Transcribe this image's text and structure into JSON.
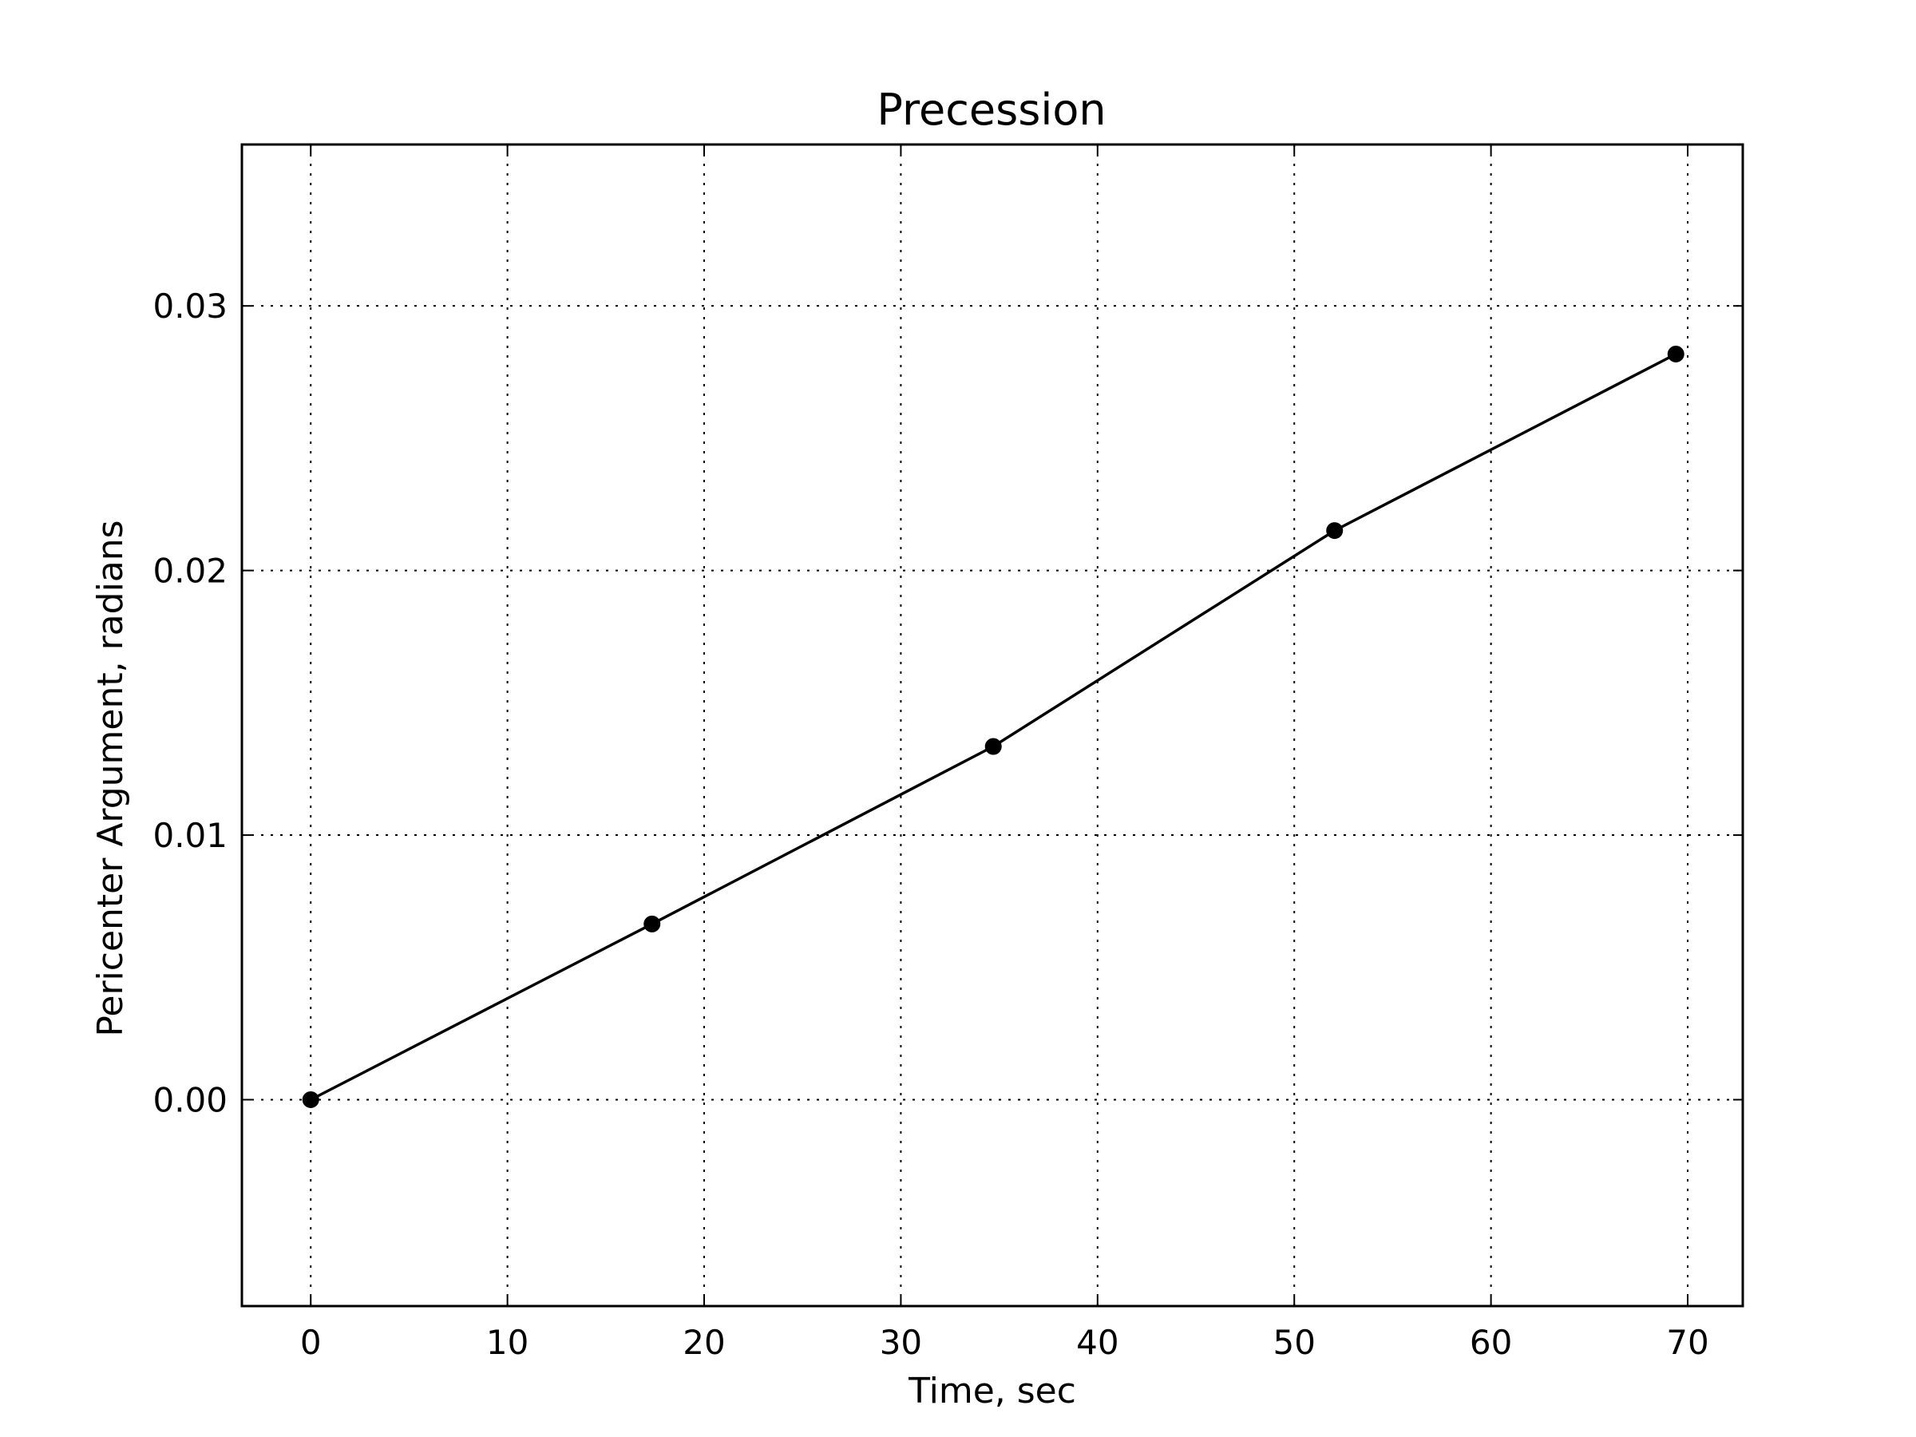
{
  "chart_data": {
    "type": "line",
    "title": "Precession",
    "xlabel": "Time, sec",
    "ylabel": "Pericenter Argument, radians",
    "xlim": [
      -3.5,
      72.8
    ],
    "ylim": [
      -0.0078,
      0.0361
    ],
    "xticks": [
      0,
      10,
      20,
      30,
      40,
      50,
      60,
      70
    ],
    "xtick_labels": [
      "0",
      "10",
      "20",
      "30",
      "40",
      "50",
      "60",
      "70"
    ],
    "yticks": [
      0.0,
      0.01,
      0.02,
      0.03
    ],
    "ytick_labels": [
      "0.00",
      "0.01",
      "0.02",
      "0.03"
    ],
    "grid": true,
    "legend": "none",
    "series": [
      {
        "color": "#000000",
        "marker": "circle",
        "x": [
          0.0,
          17.35,
          34.7,
          52.05,
          69.4
        ],
        "y": [
          0.0,
          0.00664,
          0.01335,
          0.02151,
          0.02818
        ]
      }
    ]
  }
}
